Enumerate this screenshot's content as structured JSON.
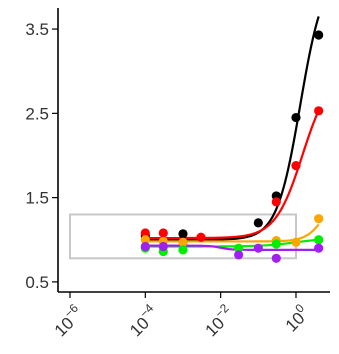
{
  "chart_data": {
    "type": "scatter",
    "title": "",
    "xlabel": "",
    "ylabel": "",
    "x_scale": "log10",
    "xlim": [
      1e-06,
      8
    ],
    "ylim": [
      0.38,
      3.75
    ],
    "grid": false,
    "legend": "none",
    "y_ticks": [
      {
        "value": 0.5,
        "label": "0.5"
      },
      {
        "value": 1.5,
        "label": "1.5"
      },
      {
        "value": 2.5,
        "label": "2.5"
      },
      {
        "value": 3.5,
        "label": "3.5"
      }
    ],
    "x_ticks": [
      {
        "value": 1e-06,
        "base": "10",
        "exp": "−6"
      },
      {
        "value": 0.0001,
        "base": "10",
        "exp": "−4"
      },
      {
        "value": 0.01,
        "base": "10",
        "exp": "−2"
      },
      {
        "value": 1,
        "base": "10",
        "exp": "0"
      }
    ],
    "series": [
      {
        "color": "#000000",
        "points": [
          [
            0.0001,
            1.05
          ],
          [
            0.001,
            1.07
          ],
          [
            0.1,
            1.2
          ],
          [
            0.3,
            1.52
          ],
          [
            1,
            2.45
          ],
          [
            4,
            3.43
          ]
        ],
        "fit": {
          "bottom": 1.0,
          "top": 4.2,
          "ec50": 1.3,
          "hill": 1.4
        }
      },
      {
        "color": "#ff0000",
        "points": [
          [
            0.0001,
            1.08
          ],
          [
            0.0003,
            1.08
          ],
          [
            0.003,
            1.03
          ],
          [
            0.3,
            1.45
          ],
          [
            1,
            1.88
          ],
          [
            4,
            2.53
          ]
        ],
        "fit": {
          "bottom": 1.02,
          "top": 3.0,
          "ec50": 1.5,
          "hill": 1.2
        }
      },
      {
        "color": "#ffa500",
        "points": [
          [
            0.0001,
            1.0
          ],
          [
            0.0003,
            0.98
          ],
          [
            0.001,
            0.97
          ],
          [
            0.3,
            0.99
          ],
          [
            1,
            0.97
          ],
          [
            4,
            1.25
          ]
        ],
        "fit": {
          "bottom": 0.98,
          "top": 1.6,
          "ec50": 6.0,
          "hill": 1.8
        }
      },
      {
        "color": "#00ee00",
        "points": [
          [
            0.0001,
            0.9
          ],
          [
            0.0003,
            0.86
          ],
          [
            0.001,
            0.88
          ],
          [
            0.03,
            0.9
          ],
          [
            0.3,
            0.95
          ],
          [
            4,
            1.0
          ]
        ],
        "fit": {
          "bottom": 0.92,
          "top": 1.02,
          "ec50": 1.0,
          "hill": 1.0
        }
      },
      {
        "color": "#a020f0",
        "points": [
          [
            0.0001,
            0.92
          ],
          [
            0.0003,
            0.92
          ],
          [
            0.03,
            0.82
          ],
          [
            0.1,
            0.9
          ],
          [
            0.3,
            0.78
          ],
          [
            4,
            0.9
          ]
        ],
        "fit": {
          "bottom": 0.93,
          "top": 0.88,
          "ec50": 0.01,
          "hill": 3.0
        }
      }
    ],
    "highlight_box": {
      "x_from": 1e-06,
      "x_to": 1.0,
      "y_from": 0.78,
      "y_to": 1.3,
      "color": "#c8c8c8"
    }
  }
}
